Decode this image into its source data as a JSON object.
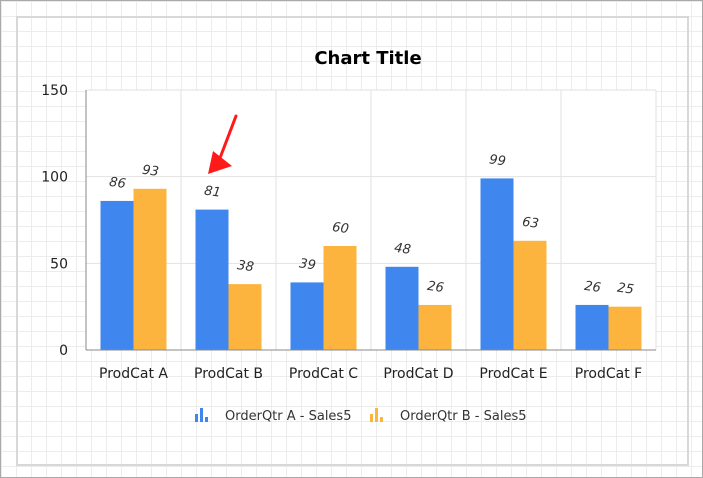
{
  "chart_data": {
    "type": "bar",
    "title": "Chart Title",
    "categories": [
      "ProdCat A",
      "ProdCat B",
      "ProdCat C",
      "ProdCat D",
      "ProdCat E",
      "ProdCat F"
    ],
    "series": [
      {
        "name": "OrderQtr A - Sales5",
        "color": "#3f87ee",
        "values": [
          86,
          81,
          39,
          48,
          99,
          26
        ]
      },
      {
        "name": "OrderQtr B - Sales5",
        "color": "#fdb43f",
        "values": [
          93,
          38,
          60,
          26,
          63,
          25
        ]
      }
    ],
    "yticks": [
      0,
      50,
      100,
      150
    ],
    "ylim": [
      0,
      150
    ],
    "grid": true,
    "legend_position": "bottom",
    "data_labels": true,
    "annotation": {
      "type": "arrow",
      "color": "#ff0000",
      "points_to": "ProdCat B / OrderQtr A - Sales5"
    }
  }
}
